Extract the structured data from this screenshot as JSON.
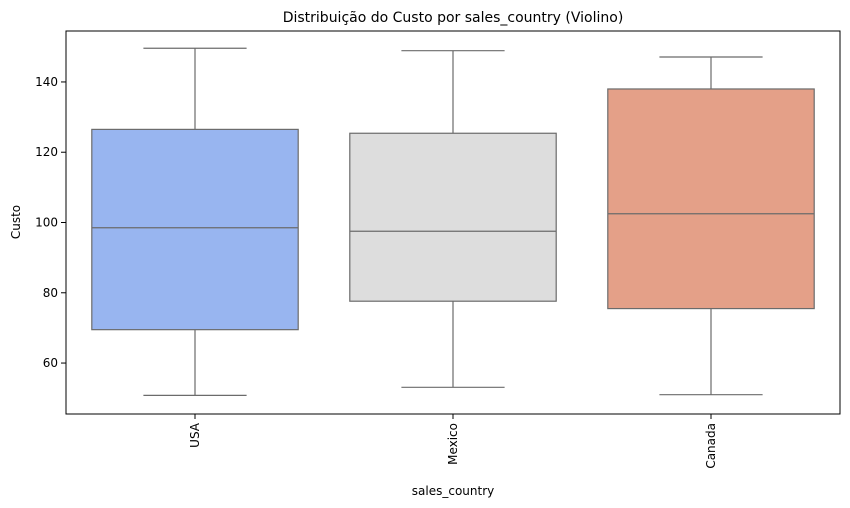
{
  "chart_data": {
    "type": "box",
    "title": "Distribuição do Custo por sales_country (Violino)",
    "xlabel": "sales_country",
    "ylabel": "Custo",
    "ylim": [
      45.5,
      154.5
    ],
    "yticks": [
      60,
      80,
      100,
      120,
      140
    ],
    "grid": false,
    "categories": [
      "USA",
      "Mexico",
      "Canada"
    ],
    "boxes": [
      {
        "category": "USA",
        "whisker_low": 50.8,
        "q1": 69.5,
        "median": 98.5,
        "q3": 126.5,
        "whisker_high": 149.6,
        "color": "#98b5f0"
      },
      {
        "category": "Mexico",
        "whisker_low": 53.1,
        "q1": 77.6,
        "median": 97.5,
        "q3": 125.4,
        "whisker_high": 148.9,
        "color": "#dddddd"
      },
      {
        "category": "Canada",
        "whisker_low": 51.0,
        "q1": 75.5,
        "median": 102.5,
        "q3": 138.0,
        "whisker_high": 147.1,
        "color": "#e4a088"
      }
    ]
  }
}
